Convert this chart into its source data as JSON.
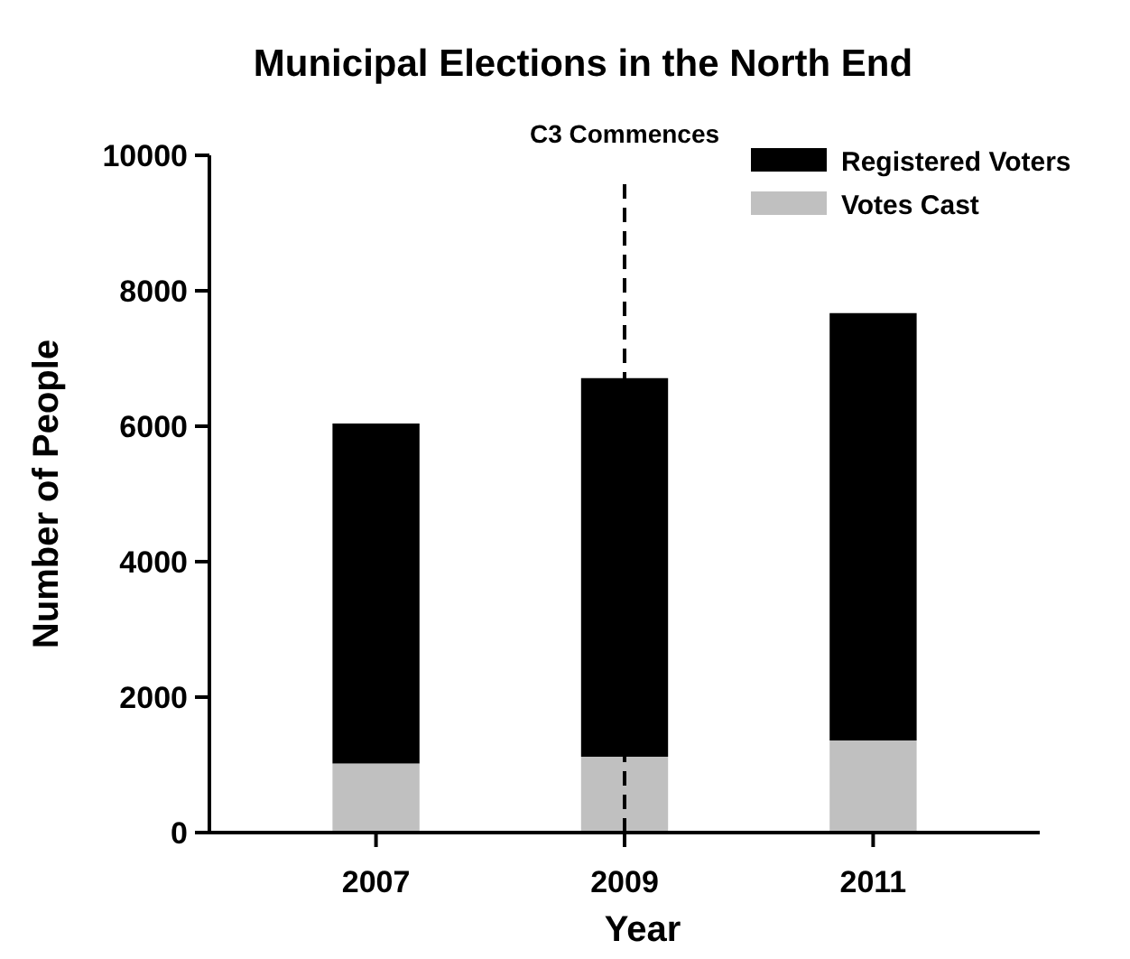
{
  "chart_data": {
    "type": "bar",
    "title": "Municipal Elections in the North End",
    "xlabel": "Year",
    "ylabel": "Number of People",
    "categories": [
      "2007",
      "2009",
      "2011"
    ],
    "stacked": true,
    "series": [
      {
        "name": "Votes Cast",
        "color": "#c0c0c0",
        "values": [
          1020,
          1120,
          1360
        ]
      },
      {
        "name": "Registered Voters",
        "color": "#000000",
        "values": [
          5020,
          5590,
          6310
        ]
      }
    ],
    "ylim": [
      0,
      10000
    ],
    "yticks": [
      0,
      2000,
      4000,
      6000,
      8000,
      10000
    ],
    "grid": false,
    "legend": "top right",
    "ref_lines": [
      {
        "axis": "x",
        "value": "2009",
        "label": "C3 Commences",
        "color": "#000000",
        "line_style": "dashed"
      }
    ]
  }
}
